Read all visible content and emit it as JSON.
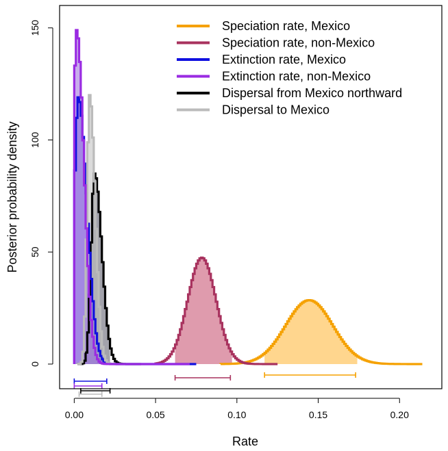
{
  "chart_data": {
    "type": "line",
    "title": "",
    "xlabel": "Rate",
    "ylabel": "Posterior probability density",
    "xlim": [
      -0.009,
      0.226
    ],
    "ylim": [
      -11,
      160
    ],
    "x_ticks": [
      0.0,
      0.05,
      0.1,
      0.15,
      0.2
    ],
    "x_tick_labels": [
      "0.00",
      "0.05",
      "0.10",
      "0.15",
      "0.20"
    ],
    "y_ticks": [
      0,
      50,
      100,
      150
    ],
    "y_tick_labels": [
      "0",
      "50",
      "100",
      "150"
    ],
    "grid": false,
    "legend_position": "top-right",
    "series": [
      {
        "name": "Speciation rate, Mexico",
        "color": "#f5a100",
        "fill": "#ffcf7a",
        "peak_x": 0.144,
        "peak_y": 28.5,
        "sd": 0.0145,
        "min_x": 0.09,
        "max_x": 0.213,
        "shaded_interval": [
          0.117,
          0.173
        ],
        "hpd_interval": [
          0.117,
          0.173
        ]
      },
      {
        "name": "Speciation rate, non-Mexico",
        "color": "#a8325e",
        "fill": "#d9899f",
        "peak_x": 0.078,
        "peak_y": 47.5,
        "sd": 0.0087,
        "min_x": 0.05,
        "max_x": 0.124,
        "shaded_interval": [
          0.062,
          0.096
        ],
        "hpd_interval": [
          0.062,
          0.096
        ]
      },
      {
        "name": "Extinction rate, Mexico",
        "color": "#1010e0",
        "fill": "#6a6adc",
        "peak_x": 0.002,
        "peak_y": 119,
        "sd": 0.0045,
        "min_x": 0.0,
        "max_x": 0.074,
        "shaded_interval": [
          0.0,
          0.02
        ],
        "hpd_interval": [
          0.0,
          0.02
        ]
      },
      {
        "name": "Extinction rate, non-Mexico",
        "color": "#9a2be2",
        "fill": "#9a6adc",
        "peak_x": 0.001,
        "peak_y": 149,
        "sd": 0.0038,
        "min_x": 0.0,
        "max_x": 0.07,
        "shaded_interval": [
          0.0,
          0.018
        ],
        "hpd_interval": [
          0.0,
          0.017
        ]
      },
      {
        "name": "Dispersal from Mexico northward",
        "color": "#000000",
        "fill": "#555566",
        "peak_x": 0.012,
        "peak_y": 85,
        "sd": 0.0038,
        "min_x": 0.002,
        "max_x": 0.04,
        "shaded_interval": [
          0.004,
          0.021
        ],
        "hpd_interval": [
          0.004,
          0.022
        ]
      },
      {
        "name": "Dispersal to Mexico",
        "color": "#bbbbbb",
        "fill": "#bdbdbd",
        "peak_x": 0.009,
        "peak_y": 120,
        "sd": 0.0029,
        "min_x": 0.002,
        "max_x": 0.03,
        "shaded_interval": [
          0.003,
          0.016
        ],
        "hpd_interval": [
          0.003,
          0.017
        ]
      }
    ]
  }
}
